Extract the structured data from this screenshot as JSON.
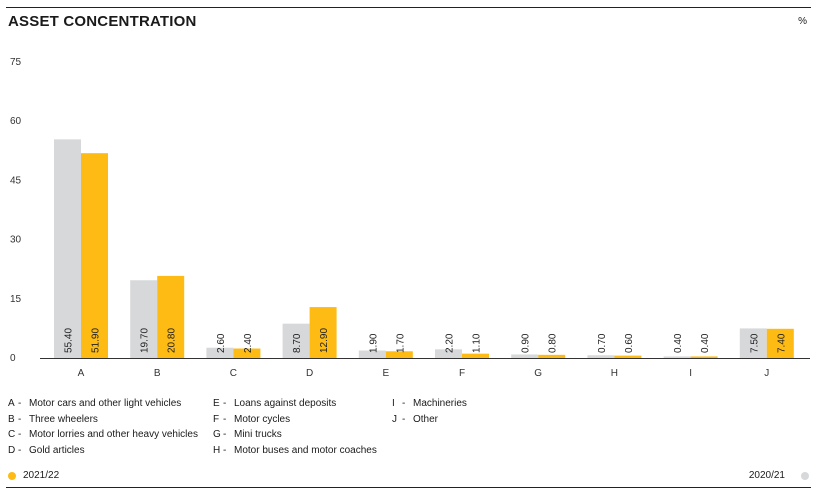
{
  "title": "ASSET CONCENTRATION",
  "unit": "%",
  "colors": {
    "current": "#FDBB14",
    "previous": "#D7D8DA",
    "axis": "#333333",
    "text": "#1a1a1a"
  },
  "legend_keys": [
    [
      {
        "letter": "A",
        "label": "Motor cars and other light vehicles"
      },
      {
        "letter": "B",
        "label": "Three wheelers"
      },
      {
        "letter": "C",
        "label": "Motor lorries and other heavy vehicles"
      },
      {
        "letter": "D",
        "label": "Gold articles"
      }
    ],
    [
      {
        "letter": "E",
        "label": "Loans against deposits"
      },
      {
        "letter": "F",
        "label": "Motor cycles"
      },
      {
        "letter": "G",
        "label": "Mini trucks"
      },
      {
        "letter": "H",
        "label": "Motor buses and motor coaches"
      }
    ],
    [
      {
        "letter": "I",
        "label": "Machineries"
      },
      {
        "letter": "J",
        "label": "Other"
      }
    ]
  ],
  "series_legend": {
    "current": "2021/22",
    "previous": "2020/21"
  },
  "chart_data": {
    "type": "bar",
    "title": "ASSET CONCENTRATION",
    "ylabel": "%",
    "ylim": [
      0,
      75
    ],
    "yticks": [
      0,
      15,
      30,
      45,
      60,
      75
    ],
    "grid": false,
    "categories": [
      "A",
      "B",
      "C",
      "D",
      "E",
      "F",
      "G",
      "H",
      "I",
      "J"
    ],
    "series": [
      {
        "name": "2020/21",
        "color": "#D7D8DA",
        "values": [
          55.4,
          19.7,
          2.6,
          8.7,
          1.9,
          2.2,
          0.9,
          0.7,
          0.4,
          7.5
        ],
        "labels": [
          "55.40",
          "19.70",
          "2.60",
          "8.70",
          "1.90",
          "2.20",
          "0.90",
          "0.70",
          "0.40",
          "7.50"
        ]
      },
      {
        "name": "2021/22",
        "color": "#FDBB14",
        "values": [
          51.9,
          20.8,
          2.4,
          12.9,
          1.7,
          1.1,
          0.8,
          0.6,
          0.4,
          7.4
        ],
        "labels": [
          "51.90",
          "20.80",
          "2.40",
          "12.90",
          "1.70",
          "1.10",
          "0.80",
          "0.60",
          "0.40",
          "7.40"
        ]
      }
    ]
  }
}
